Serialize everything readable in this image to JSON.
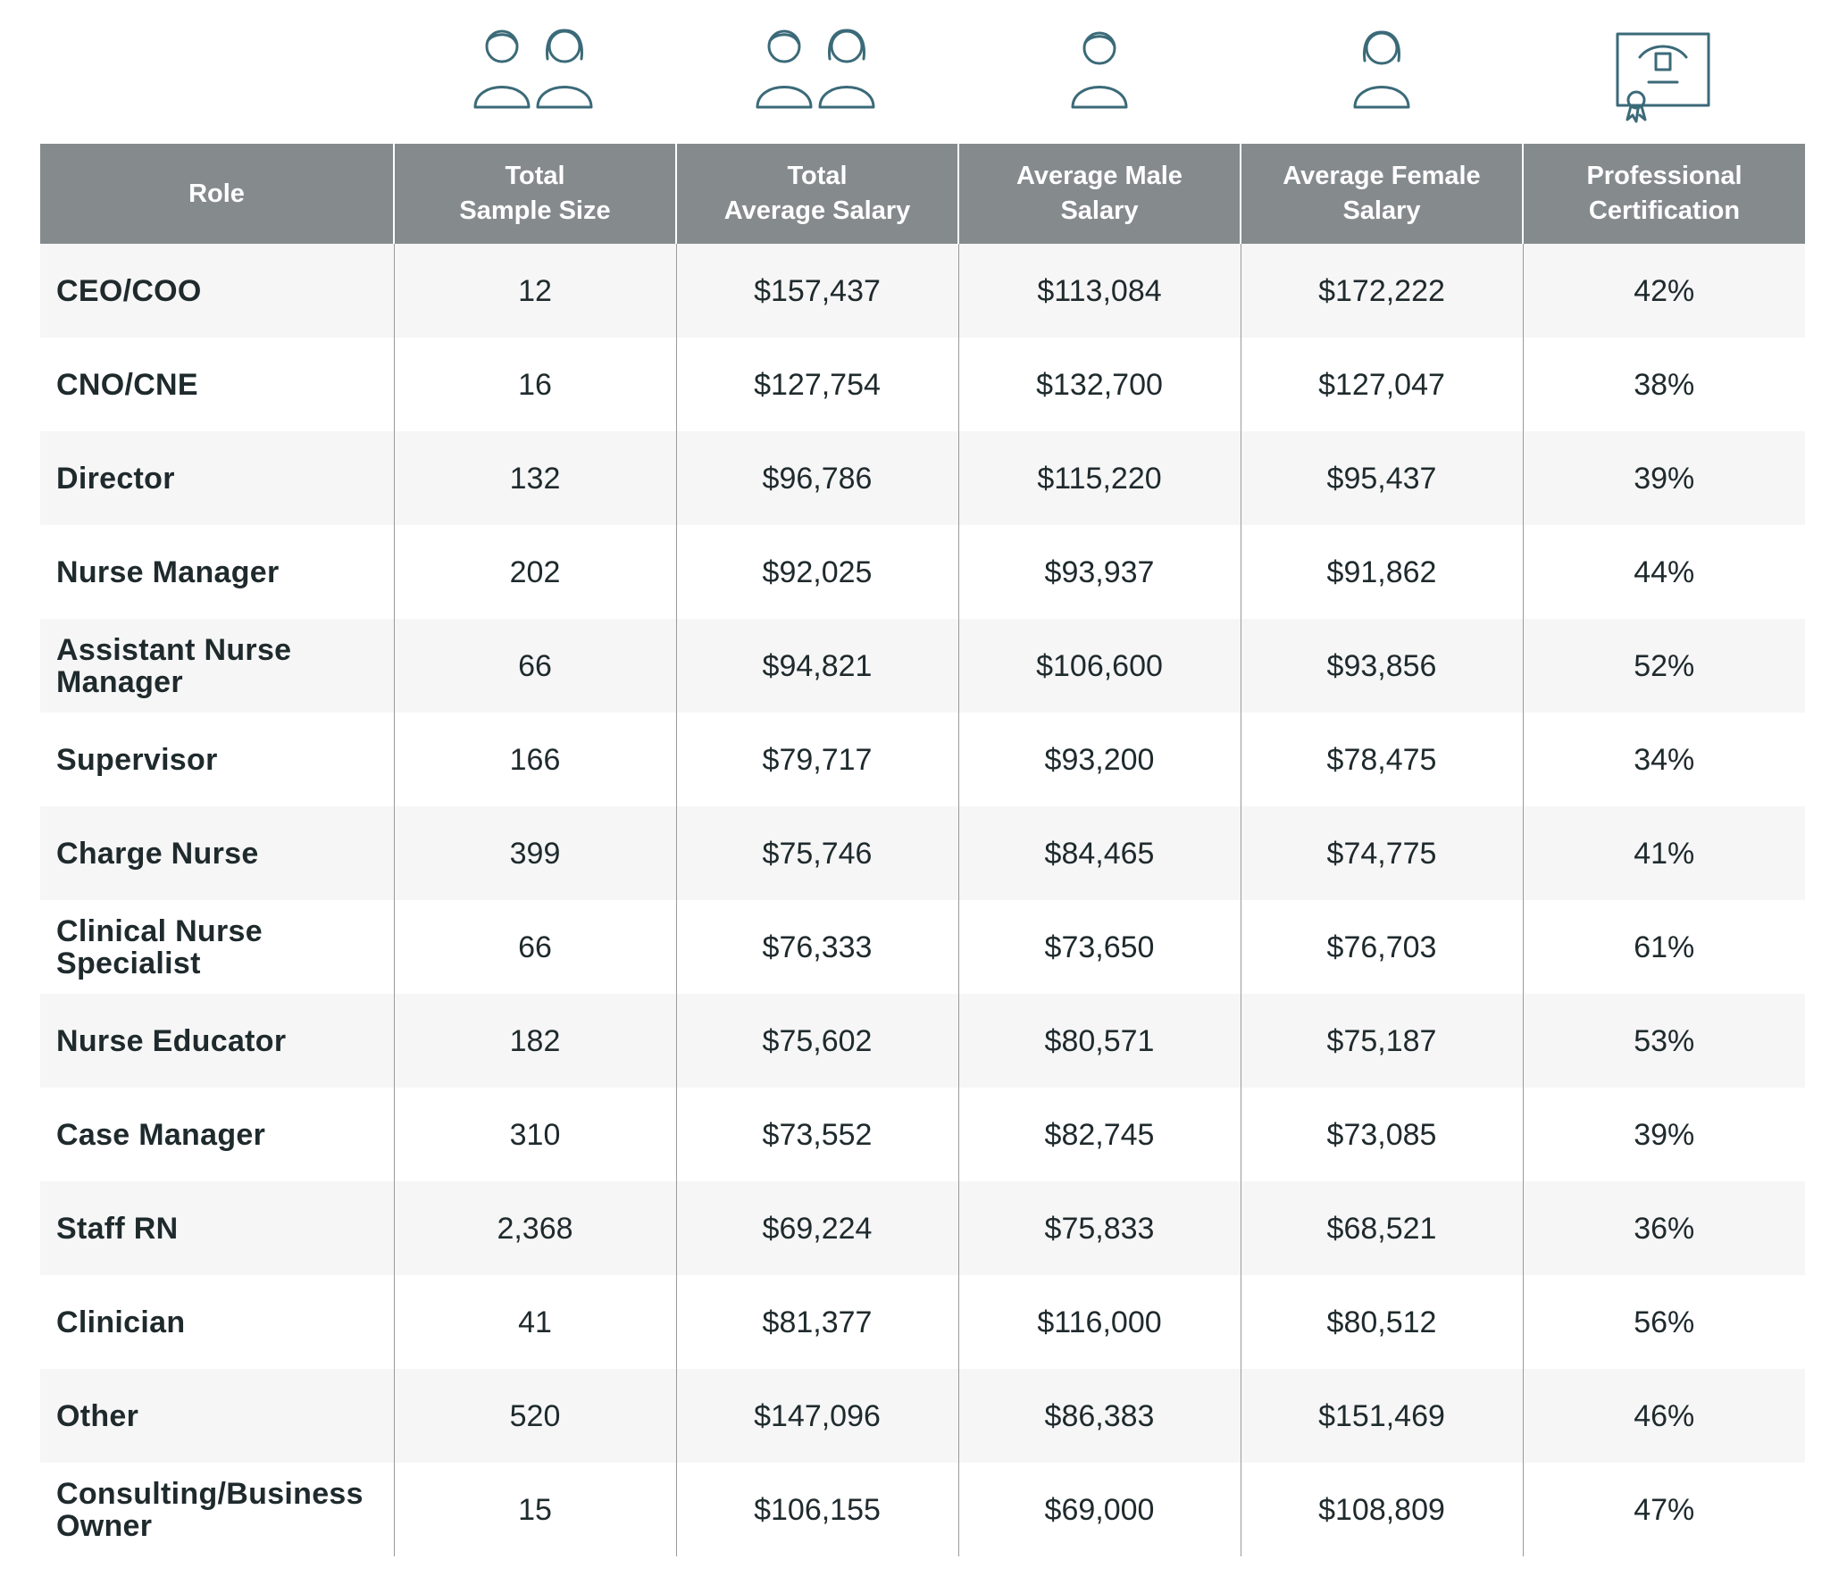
{
  "icons": [
    {
      "column": "total_sample_size",
      "icon": "male-and-female-person-icon"
    },
    {
      "column": "total_average_salary",
      "icon": "male-and-female-person-icon"
    },
    {
      "column": "average_male_salary",
      "icon": "male-person-icon"
    },
    {
      "column": "average_female_salary",
      "icon": "female-person-icon"
    },
    {
      "column": "professional_certification",
      "icon": "certificate-icon"
    }
  ],
  "colors": {
    "header_bg": "#858a8d",
    "header_text": "#ffffff",
    "icon_stroke": "#3b6a78",
    "row_alt_bg": "#f6f6f6",
    "text": "#1f2a2d"
  },
  "table": {
    "headers": [
      [
        "Role"
      ],
      [
        "Total",
        "Sample Size"
      ],
      [
        "Total",
        "Average Salary"
      ],
      [
        "Average Male",
        "Salary"
      ],
      [
        "Average Female",
        "Salary"
      ],
      [
        "Professional",
        "Certification"
      ]
    ],
    "rows": [
      [
        "CEO/COO",
        "12",
        "$157,437",
        "$113,084",
        "$172,222",
        "42%"
      ],
      [
        "CNO/CNE",
        "16",
        "$127,754",
        "$132,700",
        "$127,047",
        "38%"
      ],
      [
        "Director",
        "132",
        "$96,786",
        "$115,220",
        "$95,437",
        "39%"
      ],
      [
        "Nurse Manager",
        "202",
        "$92,025",
        "$93,937",
        "$91,862",
        "44%"
      ],
      [
        "Assistant Nurse Manager",
        "66",
        "$94,821",
        "$106,600",
        "$93,856",
        "52%"
      ],
      [
        "Supervisor",
        "166",
        "$79,717",
        "$93,200",
        "$78,475",
        "34%"
      ],
      [
        "Charge Nurse",
        "399",
        "$75,746",
        "$84,465",
        "$74,775",
        "41%"
      ],
      [
        "Clinical Nurse Specialist",
        "66",
        "$76,333",
        "$73,650",
        "$76,703",
        "61%"
      ],
      [
        "Nurse Educator",
        "182",
        "$75,602",
        "$80,571",
        "$75,187",
        "53%"
      ],
      [
        "Case Manager",
        "310",
        "$73,552",
        "$82,745",
        "$73,085",
        "39%"
      ],
      [
        "Staff RN",
        "2,368",
        "$69,224",
        "$75,833",
        "$68,521",
        "36%"
      ],
      [
        "Clinician",
        "41",
        "$81,377",
        "$116,000",
        "$80,512",
        "56%"
      ],
      [
        "Other",
        "520",
        "$147,096",
        "$86,383",
        "$151,469",
        "46%"
      ],
      [
        "Consulting/Business Owner",
        "15",
        "$106,155",
        "$69,000",
        "$108,809",
        "47%"
      ]
    ]
  }
}
